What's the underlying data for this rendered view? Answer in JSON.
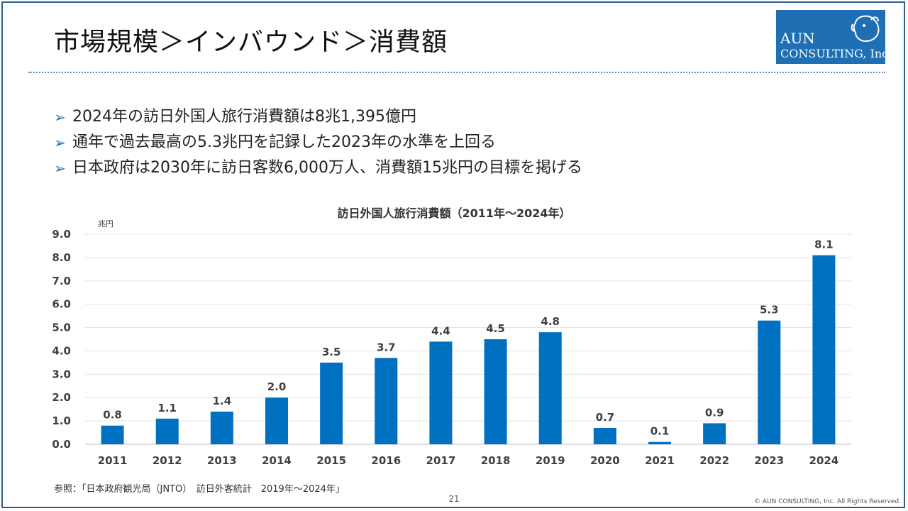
{
  "slide": {
    "title": "市場規模＞インバウンド＞消費額",
    "page_number": "21",
    "copyright": "© AUN CONSULTING, Inc. All Rights Reserved.",
    "source": "参照：「日本政府観光局（JNTO）　訪日外客統計　2019年～2024年」"
  },
  "logo": {
    "line1": "AUN",
    "line2": "CONSULTING, Inc.",
    "background": "#1e6fb4"
  },
  "bullets": [
    "2024年の訪日外国人旅行消費額は8兆1,395億円",
    "通年で過去最高の5.3兆円を記録した2023年の水準を上回る",
    "日本政府は2030年に訪日客数6,000万人、消費額15兆円の目標を掲げる"
  ],
  "chart_data": {
    "type": "bar",
    "title": "訪日外国人旅行消費額（2011年～2024年）",
    "ylabel": "兆円",
    "xlabel": "",
    "categories": [
      "2011",
      "2012",
      "2013",
      "2014",
      "2015",
      "2016",
      "2017",
      "2018",
      "2019",
      "2020",
      "2021",
      "2022",
      "2023",
      "2024"
    ],
    "values": [
      0.8,
      1.1,
      1.4,
      2.0,
      3.5,
      3.7,
      4.4,
      4.5,
      4.8,
      0.7,
      0.1,
      0.9,
      5.3,
      8.1
    ],
    "value_labels": [
      "0.8",
      "1.1",
      "1.4",
      "2.0",
      "3.5",
      "3.7",
      "4.4",
      "4.5",
      "4.8",
      "0.7",
      "0.1",
      "0.9",
      "5.3",
      "8.1"
    ],
    "ylim": [
      0,
      9
    ],
    "yticks": [
      "0.0",
      "1.0",
      "2.0",
      "3.0",
      "4.0",
      "5.0",
      "6.0",
      "7.0",
      "8.0",
      "9.0"
    ],
    "grid": true,
    "legend": "none",
    "bar_color": "#0070c0"
  }
}
